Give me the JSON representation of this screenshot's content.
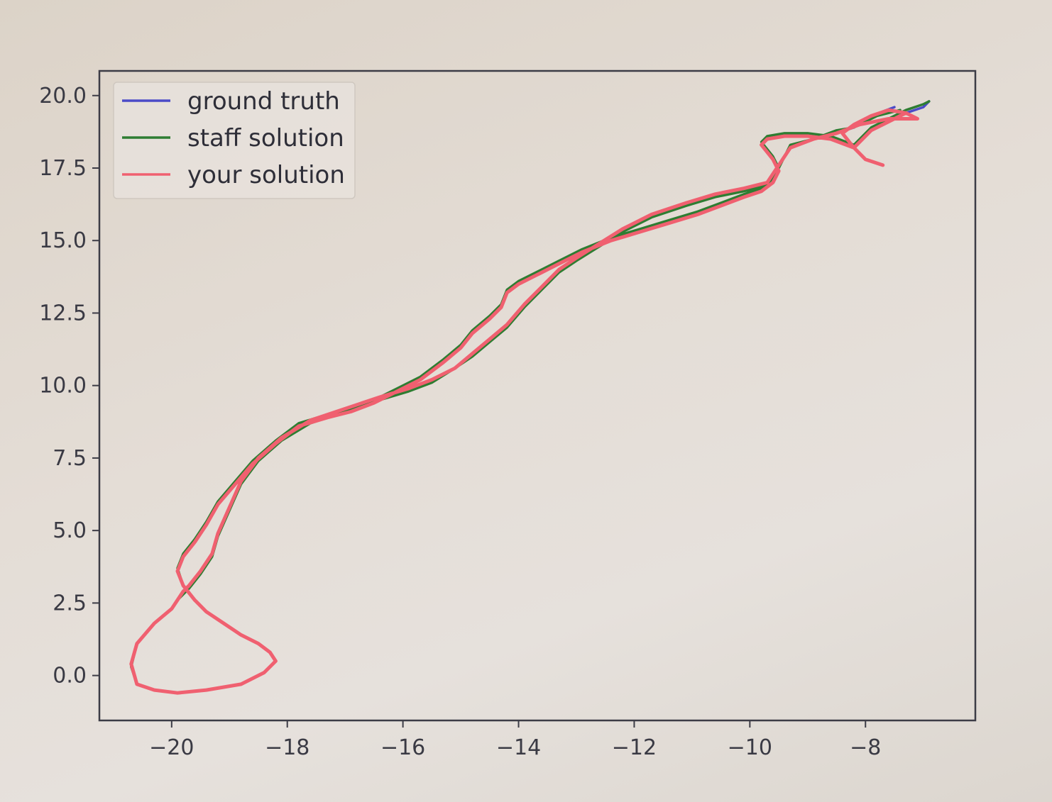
{
  "chart_data": {
    "type": "line",
    "title": "",
    "xlabel": "",
    "ylabel": "",
    "xlim": [
      -21.25,
      -6.1
    ],
    "ylim": [
      -1.55,
      20.85
    ],
    "xticks": [
      -20,
      -18,
      -16,
      -14,
      -12,
      -10,
      -8
    ],
    "xtick_labels": [
      "−20",
      "−18",
      "−16",
      "−14",
      "−12",
      "−10",
      "−8"
    ],
    "yticks": [
      0.0,
      2.5,
      5.0,
      7.5,
      10.0,
      12.5,
      15.0,
      17.5,
      20.0
    ],
    "ytick_labels": [
      "0.0",
      "2.5",
      "5.0",
      "7.5",
      "10.0",
      "12.5",
      "15.0",
      "17.5",
      "20.0"
    ],
    "grid": false,
    "legend_position": "top-left",
    "series": [
      {
        "name": "ground truth",
        "color": "#4b4bc8",
        "x": [
          -7.5,
          -7.9,
          -8.2,
          -8.5,
          -8.9,
          -9.3,
          -9.5,
          -9.7,
          -10.1,
          -10.6,
          -11.1,
          -11.7,
          -12.2,
          -12.6,
          -13.0,
          -13.3,
          -13.6,
          -13.9,
          -14.2,
          -14.5,
          -14.8,
          -15.1,
          -15.5,
          -15.9,
          -16.4,
          -17.0,
          -17.6,
          -18.1,
          -18.5,
          -18.8,
          -19.0,
          -19.2,
          -19.3,
          -19.5,
          -19.7,
          -19.8,
          -19.9,
          -20.0,
          -20.3,
          -20.6,
          -20.7,
          -20.6,
          -20.3,
          -19.9,
          -19.4,
          -18.8,
          -18.4,
          -18.2,
          -18.3,
          -18.5,
          -18.8,
          -19.1,
          -19.4,
          -19.6,
          -19.8,
          -19.9,
          -19.8,
          -19.6,
          -19.4,
          -19.2,
          -18.9,
          -18.6,
          -18.2,
          -17.8,
          -17.3,
          -16.9,
          -16.5,
          -16.1,
          -15.7,
          -15.3,
          -15.0,
          -14.8,
          -14.5,
          -14.3,
          -14.2,
          -14.0,
          -13.7,
          -13.3,
          -12.9,
          -12.4,
          -11.9,
          -11.4,
          -10.9,
          -10.5,
          -10.1,
          -9.8,
          -9.6,
          -9.5,
          -9.6,
          -9.8,
          -9.7,
          -9.4,
          -9.0,
          -8.6,
          -8.2,
          -7.9,
          -7.6,
          -7.3,
          -7.0,
          -6.9
        ],
        "y": [
          19.6,
          19.3,
          18.9,
          18.7,
          18.5,
          18.2,
          17.6,
          17.0,
          16.8,
          16.6,
          16.3,
          15.9,
          15.4,
          14.9,
          14.4,
          14.0,
          13.4,
          12.8,
          12.1,
          11.6,
          11.1,
          10.6,
          10.2,
          9.9,
          9.6,
          9.2,
          8.8,
          8.2,
          7.5,
          6.7,
          5.8,
          4.9,
          4.2,
          3.6,
          3.1,
          2.9,
          2.6,
          2.3,
          1.8,
          1.1,
          0.4,
          -0.3,
          -0.5,
          -0.6,
          -0.5,
          -0.3,
          0.1,
          0.5,
          0.8,
          1.1,
          1.4,
          1.8,
          2.2,
          2.6,
          3.1,
          3.6,
          4.1,
          4.6,
          5.2,
          5.9,
          6.6,
          7.3,
          8.0,
          8.6,
          8.9,
          9.1,
          9.4,
          9.8,
          10.2,
          10.8,
          11.3,
          11.8,
          12.3,
          12.7,
          13.2,
          13.5,
          13.8,
          14.2,
          14.6,
          15.0,
          15.3,
          15.6,
          15.9,
          16.2,
          16.5,
          16.7,
          17.0,
          17.4,
          17.8,
          18.3,
          18.5,
          18.6,
          18.6,
          18.5,
          18.2,
          18.8,
          19.1,
          19.4,
          19.6,
          19.8
        ]
      },
      {
        "name": "staff solution",
        "color": "#2e7d32",
        "x": [
          -7.4,
          -7.8,
          -8.2,
          -8.5,
          -8.9,
          -9.3,
          -9.5,
          -9.7,
          -10.1,
          -10.6,
          -11.1,
          -11.7,
          -12.2,
          -12.6,
          -13.0,
          -13.3,
          -13.6,
          -13.9,
          -14.2,
          -14.5,
          -14.8,
          -15.1,
          -15.5,
          -15.9,
          -16.4,
          -17.0,
          -17.6,
          -18.1,
          -18.5,
          -18.8,
          -19.0,
          -19.2,
          -19.3,
          -19.5,
          -19.7,
          -19.8,
          -19.9,
          -20.0,
          -20.3,
          -20.6,
          -20.7,
          -20.6,
          -20.3,
          -19.9,
          -19.4,
          -18.8,
          -18.4,
          -18.2,
          -18.3,
          -18.5,
          -18.8,
          -19.1,
          -19.4,
          -19.6,
          -19.8,
          -19.9,
          -19.8,
          -19.6,
          -19.4,
          -19.2,
          -18.9,
          -18.6,
          -18.2,
          -17.8,
          -17.3,
          -16.9,
          -16.5,
          -16.1,
          -15.7,
          -15.3,
          -15.0,
          -14.8,
          -14.5,
          -14.3,
          -14.2,
          -14.0,
          -13.7,
          -13.3,
          -12.9,
          -12.4,
          -11.9,
          -11.4,
          -10.9,
          -10.5,
          -10.1,
          -9.8,
          -9.6,
          -9.5,
          -9.6,
          -9.8,
          -9.7,
          -9.4,
          -9.0,
          -8.6,
          -8.2,
          -7.9,
          -7.6,
          -7.3,
          -7.0,
          -6.9
        ],
        "y": [
          19.5,
          19.3,
          18.9,
          18.8,
          18.5,
          18.3,
          17.5,
          16.9,
          16.7,
          16.5,
          16.2,
          15.8,
          15.3,
          14.8,
          14.3,
          13.9,
          13.3,
          12.7,
          12.0,
          11.5,
          11.0,
          10.6,
          10.1,
          9.8,
          9.5,
          9.1,
          8.7,
          8.1,
          7.4,
          6.6,
          5.7,
          4.8,
          4.1,
          3.5,
          3.0,
          2.8,
          2.6,
          2.3,
          1.8,
          1.1,
          0.3,
          -0.3,
          -0.5,
          -0.6,
          -0.5,
          -0.3,
          0.1,
          0.5,
          0.8,
          1.1,
          1.4,
          1.8,
          2.2,
          2.6,
          3.1,
          3.7,
          4.2,
          4.7,
          5.3,
          6.0,
          6.7,
          7.4,
          8.1,
          8.7,
          9.0,
          9.2,
          9.5,
          9.9,
          10.3,
          10.9,
          11.4,
          11.9,
          12.4,
          12.8,
          13.3,
          13.6,
          13.9,
          14.3,
          14.7,
          15.1,
          15.4,
          15.7,
          16.0,
          16.3,
          16.6,
          16.8,
          17.1,
          17.5,
          17.9,
          18.4,
          18.6,
          18.7,
          18.7,
          18.6,
          18.3,
          18.9,
          19.2,
          19.5,
          19.7,
          19.8
        ]
      },
      {
        "name": "your solution",
        "color": "#f06070",
        "x": [
          -7.7,
          -8.0,
          -8.2,
          -8.4,
          -8.2,
          -7.9,
          -7.6,
          -7.3,
          -7.1,
          -7.6,
          -8.1,
          -8.5,
          -8.9,
          -9.3,
          -9.5,
          -9.7,
          -10.1,
          -10.6,
          -11.1,
          -11.7,
          -12.2,
          -12.6,
          -13.0,
          -13.3,
          -13.6,
          -13.9,
          -14.2,
          -14.5,
          -14.8,
          -15.1,
          -15.5,
          -15.9,
          -16.4,
          -17.0,
          -17.6,
          -18.1,
          -18.5,
          -18.8,
          -19.0,
          -19.2,
          -19.3,
          -19.5,
          -19.7,
          -19.8,
          -19.9,
          -20.0,
          -20.3,
          -20.6,
          -20.7,
          -20.6,
          -20.3,
          -19.9,
          -19.4,
          -18.8,
          -18.4,
          -18.2,
          -18.3,
          -18.5,
          -18.8,
          -19.1,
          -19.4,
          -19.6,
          -19.8,
          -19.9,
          -19.8,
          -19.6,
          -19.4,
          -19.2,
          -18.9,
          -18.6,
          -18.2,
          -17.8,
          -17.3,
          -16.9,
          -16.5,
          -16.1,
          -15.7,
          -15.3,
          -15.0,
          -14.8,
          -14.5,
          -14.3,
          -14.2,
          -14.0,
          -13.7,
          -13.3,
          -12.9,
          -12.4,
          -11.9,
          -11.4,
          -10.9,
          -10.5,
          -10.1,
          -9.8,
          -9.6,
          -9.5,
          -9.6,
          -9.8,
          -9.7,
          -9.4,
          -9.0,
          -8.6,
          -8.2,
          -7.9,
          -7.6,
          -7.3
        ],
        "y": [
          17.6,
          17.8,
          18.2,
          18.7,
          19.0,
          19.3,
          19.5,
          19.4,
          19.2,
          19.2,
          19.0,
          18.7,
          18.5,
          18.2,
          17.6,
          17.0,
          16.8,
          16.6,
          16.3,
          15.9,
          15.4,
          14.9,
          14.4,
          14.0,
          13.4,
          12.8,
          12.1,
          11.6,
          11.1,
          10.6,
          10.2,
          9.9,
          9.6,
          9.2,
          8.8,
          8.2,
          7.5,
          6.7,
          5.8,
          4.9,
          4.2,
          3.6,
          3.1,
          2.9,
          2.6,
          2.3,
          1.8,
          1.1,
          0.4,
          -0.3,
          -0.5,
          -0.6,
          -0.5,
          -0.3,
          0.1,
          0.5,
          0.8,
          1.1,
          1.4,
          1.8,
          2.2,
          2.6,
          3.1,
          3.6,
          4.1,
          4.6,
          5.2,
          5.9,
          6.6,
          7.3,
          8.0,
          8.6,
          8.9,
          9.1,
          9.4,
          9.8,
          10.2,
          10.8,
          11.3,
          11.8,
          12.3,
          12.7,
          13.2,
          13.5,
          13.8,
          14.2,
          14.6,
          15.0,
          15.3,
          15.6,
          15.9,
          16.2,
          16.5,
          16.7,
          17.0,
          17.4,
          17.8,
          18.3,
          18.5,
          18.6,
          18.6,
          18.5,
          18.2,
          18.8,
          19.1,
          19.4
        ]
      }
    ]
  }
}
